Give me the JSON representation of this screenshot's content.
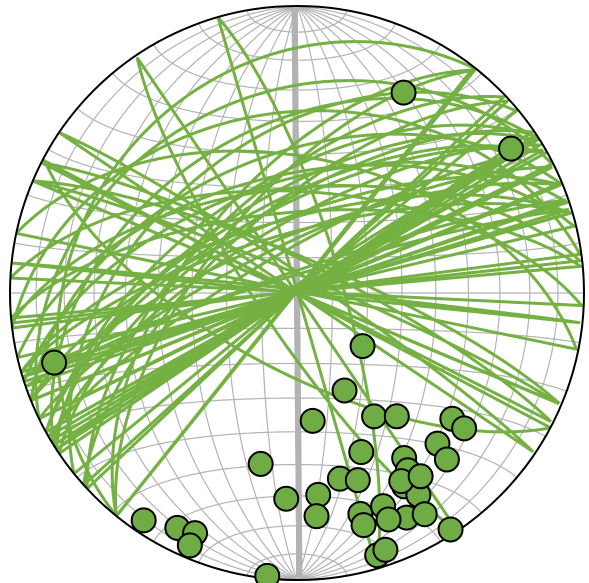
{
  "chart_data": {
    "type": "stereonet",
    "projection": "equal-area",
    "hemisphere": "lower",
    "grid": true,
    "grid_interval": 10,
    "color": "#75b043",
    "pole_color": "#6fac46",
    "poles": {
      "trend": [
        28,
        56,
        254,
        129,
        154,
        173,
        148,
        141,
        129,
        129,
        137,
        158,
        138,
        147,
        148,
        192,
        167,
        162,
        151,
        149,
        183,
        174,
        175,
        164,
        158,
        154,
        150,
        158,
        147,
        164,
        214,
        207,
        203,
        203,
        163,
        161,
        186,
        151,
        146
      ],
      "plunge": [
        22,
        11,
        13,
        66,
        59,
        53,
        48,
        44,
        31,
        26,
        29,
        40,
        23,
        32,
        28,
        39,
        34,
        32,
        24,
        19,
        29,
        30,
        23,
        21,
        21,
        14,
        12,
        16,
        2,
        17,
        5,
        9,
        10,
        5,
        5,
        6,
        1,
        26,
        24
      ]
    }
  }
}
